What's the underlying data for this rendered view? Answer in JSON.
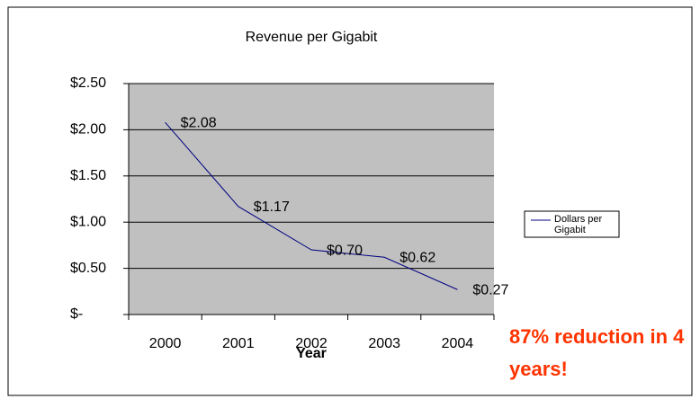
{
  "chart_data": {
    "type": "line",
    "title": "Revenue per Gigabit",
    "x_label": "Year",
    "categories": [
      "2000",
      "2001",
      "2002",
      "2003",
      "2004"
    ],
    "series": [
      {
        "name": "Dollars per Gigabit",
        "color": "#000080",
        "values": [
          2.08,
          1.17,
          0.7,
          0.62,
          0.27
        ],
        "value_labels": [
          "$2.08",
          "$1.17",
          "$0.70",
          "$0.62",
          "$0.27"
        ]
      }
    ],
    "ylim": [
      0,
      2.5
    ],
    "yticks": [
      {
        "value": 0,
        "label": "$-"
      },
      {
        "value": 0.5,
        "label": "$0.50"
      },
      {
        "value": 1,
        "label": "$1.00"
      },
      {
        "value": 1.5,
        "label": "$1.50"
      },
      {
        "value": 2,
        "label": "$2.00"
      },
      {
        "value": 2.5,
        "label": "$2.50"
      }
    ],
    "grid": true,
    "plot_background": "#c0c0c0",
    "legend_position": "right",
    "annotation": "87% reduction in 4 years!",
    "annotation_color": "#ff3300"
  }
}
